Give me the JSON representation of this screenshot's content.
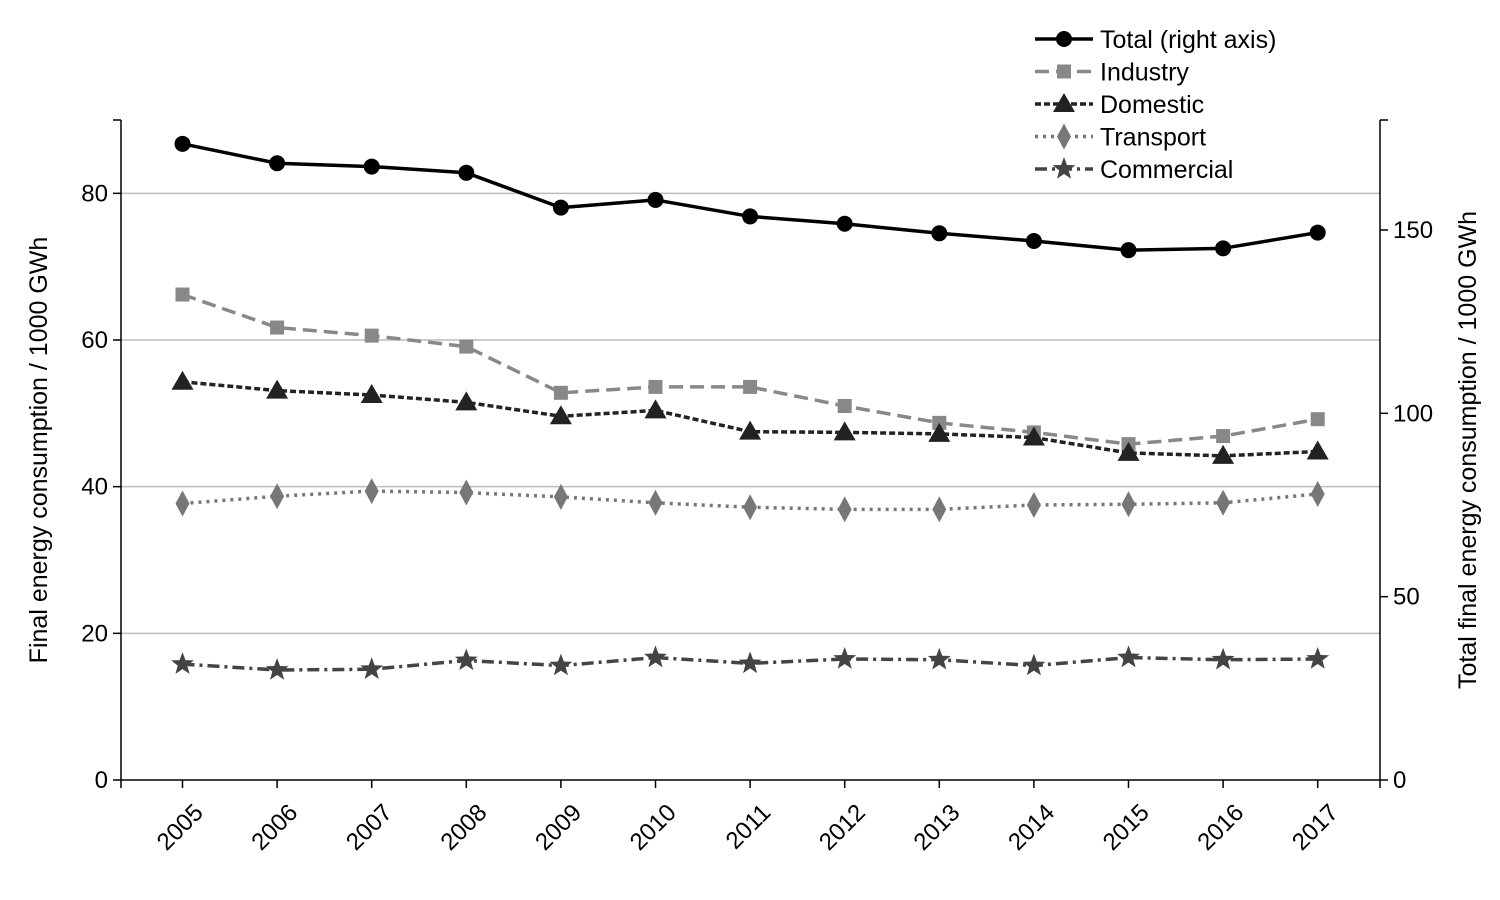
{
  "chart_data": {
    "type": "line",
    "title": "",
    "xlabel": "",
    "ylabel": "Final energy consumption / 1000 GWh",
    "y2label": "Total final energy consumption / 1000 GWh",
    "categories": [
      "2005",
      "2006",
      "2007",
      "2008",
      "2009",
      "2010",
      "2011",
      "2012",
      "2013",
      "2014",
      "2015",
      "2016",
      "2017"
    ],
    "ylim": [
      0,
      90
    ],
    "yticks": [
      0,
      20,
      40,
      60,
      80
    ],
    "y2lim": [
      0,
      180
    ],
    "y2ticks": [
      0,
      50,
      100,
      150
    ],
    "grid": "horizontal",
    "legend_position": "top-right",
    "series": [
      {
        "name": "Total (right axis)",
        "axis": "right",
        "color": "#000000",
        "marker": "circle",
        "dash": "solid",
        "values": [
          173.5,
          168.2,
          167.3,
          165.6,
          156.1,
          158.2,
          153.7,
          151.7,
          149.1,
          147.0,
          144.5,
          145.0,
          149.3
        ]
      },
      {
        "name": "Industry",
        "axis": "left",
        "color": "#888888",
        "marker": "square",
        "dash": "dashed",
        "values": [
          66.2,
          61.7,
          60.6,
          59.1,
          52.8,
          53.6,
          53.6,
          51.0,
          48.7,
          47.4,
          45.8,
          46.9,
          49.2
        ]
      },
      {
        "name": "Domestic",
        "axis": "left",
        "color": "#222222",
        "marker": "triangle",
        "dash": "dotted-dense",
        "values": [
          54.3,
          53.1,
          52.5,
          51.5,
          49.6,
          50.4,
          47.5,
          47.4,
          47.2,
          46.7,
          44.6,
          44.2,
          44.8
        ]
      },
      {
        "name": "Transport",
        "axis": "left",
        "color": "#777777",
        "marker": "diamond",
        "dash": "dotted",
        "values": [
          37.7,
          38.7,
          39.4,
          39.2,
          38.6,
          37.8,
          37.2,
          36.9,
          36.9,
          37.5,
          37.6,
          37.8,
          39.0
        ]
      },
      {
        "name": "Commercial",
        "axis": "left",
        "color": "#444444",
        "marker": "star",
        "dash": "dashdot",
        "values": [
          15.8,
          15.0,
          15.1,
          16.3,
          15.6,
          16.7,
          15.9,
          16.5,
          16.4,
          15.6,
          16.7,
          16.4,
          16.5
        ]
      }
    ]
  }
}
